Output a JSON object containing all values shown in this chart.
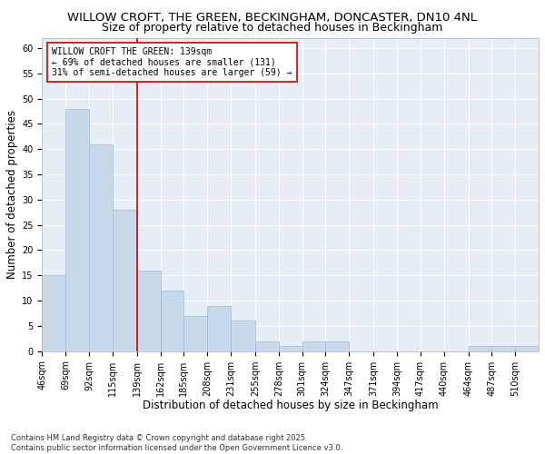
{
  "title1": "WILLOW CROFT, THE GREEN, BECKINGHAM, DONCASTER, DN10 4NL",
  "title2": "Size of property relative to detached houses in Beckingham",
  "xlabel": "Distribution of detached houses by size in Beckingham",
  "ylabel": "Number of detached properties",
  "footnote": "Contains HM Land Registry data © Crown copyright and database right 2025.\nContains public sector information licensed under the Open Government Licence v3.0.",
  "bar_edges": [
    46,
    69,
    92,
    115,
    139,
    162,
    185,
    208,
    231,
    255,
    278,
    301,
    324,
    347,
    371,
    394,
    417,
    440,
    464,
    487,
    510
  ],
  "bar_values": [
    15,
    48,
    41,
    28,
    16,
    12,
    7,
    9,
    6,
    2,
    1,
    2,
    2,
    0,
    0,
    0,
    0,
    0,
    1,
    1,
    1
  ],
  "tick_labels": [
    "46sqm",
    "69sqm",
    "92sqm",
    "115sqm",
    "139sqm",
    "162sqm",
    "185sqm",
    "208sqm",
    "231sqm",
    "255sqm",
    "278sqm",
    "301sqm",
    "324sqm",
    "347sqm",
    "371sqm",
    "394sqm",
    "417sqm",
    "440sqm",
    "464sqm",
    "487sqm",
    "510sqm"
  ],
  "bar_color": "#c9d9ec",
  "bar_edge_color": "#a0b8d8",
  "redline_x": 139,
  "annotation_text": "WILLOW CROFT THE GREEN: 139sqm\n← 69% of detached houses are smaller (131)\n31% of semi-detached houses are larger (59) →",
  "annotation_box_color": "#ffffff",
  "annotation_box_edge": "#cc0000",
  "ylim": [
    0,
    62
  ],
  "yticks": [
    0,
    5,
    10,
    15,
    20,
    25,
    30,
    35,
    40,
    45,
    50,
    55,
    60
  ],
  "bg_color": "#ffffff",
  "plot_bg_color": "#e8eef5",
  "grid_color": "#ffffff",
  "title_fontsize": 9.5,
  "title2_fontsize": 9.0,
  "axis_label_fontsize": 8.5,
  "tick_fontsize": 7.0,
  "annotation_fontsize": 7.0,
  "footnote_fontsize": 6.0
}
